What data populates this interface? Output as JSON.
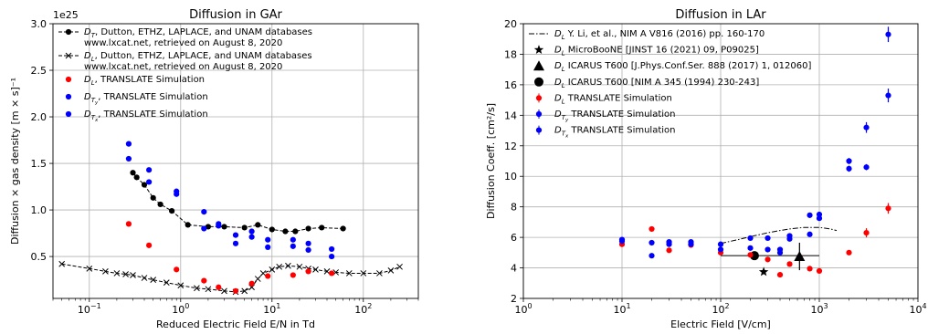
{
  "chart_data": [
    {
      "type": "scatter",
      "title": "Diffusion in GAr",
      "xlabel": "Reduced Electric Field E/N in Td",
      "ylabel": "Diffusion × gas density [m × s]⁻¹",
      "offset_text": "1e25",
      "xscale": "log",
      "xlim": [
        0.04,
        400
      ],
      "ylim": [
        0.05,
        3.0
      ],
      "xticks": [
        {
          "value": 0.1,
          "base": "10",
          "exp": "−1"
        },
        {
          "value": 1,
          "base": "10",
          "exp": "0"
        },
        {
          "value": 10,
          "base": "10",
          "exp": "1"
        },
        {
          "value": 100,
          "base": "10",
          "exp": "2"
        }
      ],
      "yticks": [
        {
          "value": 0.5,
          "label": "0.5"
        },
        {
          "value": 1.0,
          "label": "1.0"
        },
        {
          "value": 1.5,
          "label": "1.5"
        },
        {
          "value": 2.0,
          "label": "2.0"
        },
        {
          "value": 2.5,
          "label": "2.5"
        },
        {
          "value": 3.0,
          "label": "3.0"
        }
      ],
      "grid": true,
      "legend_position": "upper left",
      "series": [
        {
          "name": "D_T, Dutton, ETHZ, LAPLACE, and UNAM databases www.lxcat.net, retrieved on August 8, 2020",
          "legend_lines": [
            "Dutton, ETHZ, LAPLACE, and UNAM databases",
            "www.lxcat.net, retrieved on August 8, 2020"
          ],
          "symbol": "D",
          "sub": "T",
          "kind": "line_dot",
          "color": "#000000",
          "x": [
            0.3,
            0.33,
            0.4,
            0.5,
            0.6,
            0.8,
            1.2,
            2,
            3,
            5,
            7,
            10,
            14,
            18,
            25,
            35,
            60
          ],
          "y": [
            1.4,
            1.35,
            1.27,
            1.13,
            1.06,
            0.99,
            0.84,
            0.82,
            0.82,
            0.81,
            0.84,
            0.79,
            0.77,
            0.77,
            0.8,
            0.81,
            0.8
          ]
        },
        {
          "name": "D_L, Dutton, ETHZ, LAPLACE, and UNAM databases www.lxcat.net, retrieved on August 8, 2020",
          "legend_lines": [
            "Dutton, ETHZ, LAPLACE, and UNAM databases",
            "www.lxcat.net, retrieved on August 8, 2020"
          ],
          "symbol": "D",
          "sub": "L",
          "kind": "line_x",
          "color": "#000000",
          "x": [
            0.05,
            0.1,
            0.15,
            0.2,
            0.25,
            0.3,
            0.4,
            0.5,
            0.7,
            1.0,
            1.5,
            2,
            3,
            4,
            5,
            6,
            7,
            8,
            10,
            12,
            15,
            20,
            25,
            30,
            40,
            50,
            70,
            100,
            150,
            200,
            250
          ],
          "y": [
            0.42,
            0.37,
            0.34,
            0.32,
            0.31,
            0.3,
            0.27,
            0.25,
            0.22,
            0.19,
            0.16,
            0.15,
            0.13,
            0.12,
            0.13,
            0.17,
            0.26,
            0.32,
            0.36,
            0.39,
            0.4,
            0.39,
            0.37,
            0.36,
            0.34,
            0.33,
            0.32,
            0.32,
            0.32,
            0.35,
            0.39
          ]
        },
        {
          "name": "D_L, TRANSLATE Simulation",
          "legend_suffix": ", TRANSLATE Simulation",
          "symbol": "D",
          "sub": "L",
          "kind": "dot",
          "color": "#ff0000",
          "x": [
            0.27,
            0.45,
            0.9,
            1.8,
            2.6,
            4.0,
            6.0,
            9.0,
            17,
            25,
            45
          ],
          "y": [
            0.85,
            0.62,
            0.36,
            0.24,
            0.17,
            0.13,
            0.21,
            0.29,
            0.3,
            0.34,
            0.32
          ]
        },
        {
          "name": "D_Ty, TRANSLATE Simulation",
          "legend_suffix": ", TRANSLATE Simulation",
          "symbol": "D",
          "sub": "T",
          "subsub": "y",
          "kind": "dot",
          "color": "#0000ff",
          "x": [
            0.27,
            0.45,
            0.9,
            1.8,
            2.6,
            4.0,
            6.0,
            9.0,
            17,
            25,
            45
          ],
          "y": [
            1.71,
            1.43,
            1.2,
            0.98,
            0.85,
            0.73,
            0.71,
            0.68,
            0.68,
            0.64,
            0.58
          ]
        },
        {
          "name": "D_Tx, TRANSLATE Simulation",
          "legend_suffix": ", TRANSLATE Simulation",
          "symbol": "D",
          "sub": "T",
          "subsub": "x",
          "kind": "dot",
          "color": "#0000ff",
          "x": [
            0.27,
            0.45,
            0.9,
            1.8,
            2.6,
            4.0,
            6.0,
            9.0,
            17,
            25,
            45
          ],
          "y": [
            1.55,
            1.3,
            1.17,
            0.8,
            0.83,
            0.64,
            0.77,
            0.6,
            0.61,
            0.57,
            0.5
          ]
        }
      ]
    },
    {
      "type": "scatter",
      "title": "Diffusion in LAr",
      "xlabel": "Electric Field [V/cm]",
      "ylabel": "Diffusion Coeff. [cm²/s]",
      "xscale": "log",
      "xlim": [
        1,
        10000
      ],
      "ylim": [
        2,
        20
      ],
      "xticks": [
        {
          "value": 1,
          "base": "10",
          "exp": "0"
        },
        {
          "value": 10,
          "base": "10",
          "exp": "1"
        },
        {
          "value": 100,
          "base": "10",
          "exp": "2"
        },
        {
          "value": 1000,
          "base": "10",
          "exp": "3"
        },
        {
          "value": 10000,
          "base": "10",
          "exp": "4"
        }
      ],
      "yticks": [
        {
          "value": 2,
          "label": "2"
        },
        {
          "value": 4,
          "label": "4"
        },
        {
          "value": 6,
          "label": "6"
        },
        {
          "value": 8,
          "label": "8"
        },
        {
          "value": 10,
          "label": "10"
        },
        {
          "value": 12,
          "label": "12"
        },
        {
          "value": 14,
          "label": "14"
        },
        {
          "value": 16,
          "label": "16"
        },
        {
          "value": 18,
          "label": "18"
        },
        {
          "value": 20,
          "label": "20"
        }
      ],
      "grid": true,
      "legend_position": "upper left",
      "series": [
        {
          "name": "D_L Y. Li, et al., NIM A V816 (2016) pp. 160-170",
          "legend_suffix": " Y. Li, et al., NIM A V816 (2016) pp. 160-170",
          "symbol": "D",
          "sub": "L",
          "kind": "dashdot",
          "color": "#000000",
          "x": [
            100,
            150,
            200,
            300,
            400,
            500,
            700,
            1000,
            1300,
            1500
          ],
          "y": [
            5.6,
            5.85,
            6.05,
            6.3,
            6.45,
            6.55,
            6.65,
            6.65,
            6.55,
            6.45
          ]
        },
        {
          "name": "D_L MicroBooNE [JINST 16 (2021) 09, P09025]",
          "legend_suffix": " MicroBooNE [JINST 16 (2021) 09, P09025]",
          "symbol": "D",
          "sub": "L",
          "kind": "star",
          "color": "#000000",
          "x": [
            273
          ],
          "y": [
            3.74
          ]
        },
        {
          "name": "D_L ICARUS T600 [J.Phys.Conf.Ser. 888 (2017) 1, 012060]",
          "legend_suffix": " ICARUS T600 [J.Phys.Conf.Ser. 888 (2017) 1, 012060]",
          "symbol": "D",
          "sub": "L",
          "kind": "triangle",
          "color": "#000000",
          "x": [
            630
          ],
          "y": [
            4.75
          ],
          "yerr": [
            0.9
          ]
        },
        {
          "name": "D_L ICARUS T600 [NIM A 345 (1994) 230-243]",
          "legend_suffix": " ICARUS T600 [NIM A 345 (1994) 230-243]",
          "symbol": "D",
          "sub": "L",
          "kind": "bigdot",
          "color": "#000000",
          "x": [
            220
          ],
          "y": [
            4.8
          ],
          "xerr_range": [
            100,
            1000
          ]
        },
        {
          "name": "D_L TRANSLATE Simulation",
          "legend_suffix": " TRANSLATE Simulation",
          "symbol": "D",
          "sub": "L",
          "kind": "dot_err",
          "color": "#ff0000",
          "x": [
            10,
            20,
            30,
            50,
            100,
            200,
            300,
            400,
            500,
            800,
            1000,
            2000,
            3000,
            5000
          ],
          "y": [
            5.55,
            6.55,
            5.15,
            5.5,
            5.0,
            4.85,
            4.55,
            3.55,
            4.25,
            3.95,
            3.8,
            5.0,
            6.3,
            7.9
          ],
          "yerr": [
            0.1,
            0.1,
            0.1,
            0.1,
            0.1,
            0.1,
            0.1,
            0.1,
            0.1,
            0.1,
            0.1,
            0.15,
            0.3,
            0.35
          ]
        },
        {
          "name": "D_Ty TRANSLATE Simulation",
          "legend_suffix": " TRANSLATE Simulation",
          "symbol": "D",
          "sub": "T",
          "subsub": "y",
          "kind": "dot_err",
          "color": "#0000ff",
          "x": [
            10,
            20,
            30,
            50,
            100,
            200,
            300,
            400,
            500,
            800,
            1000,
            2000,
            3000,
            5000
          ],
          "y": [
            5.75,
            4.8,
            5.7,
            5.7,
            5.55,
            5.95,
            5.2,
            5.0,
            6.1,
            6.2,
            7.5,
            11.0,
            13.2,
            15.3
          ],
          "yerr": [
            0.1,
            0.1,
            0.1,
            0.1,
            0.1,
            0.1,
            0.1,
            0.1,
            0.1,
            0.1,
            0.1,
            0.2,
            0.35,
            0.45
          ]
        },
        {
          "name": "D_Tx TRANSLATE Simulation",
          "legend_suffix": " TRANSLATE Simulation",
          "symbol": "D",
          "sub": "T",
          "subsub": "x",
          "kind": "dot_err",
          "color": "#0000ff",
          "x": [
            10,
            20,
            30,
            50,
            100,
            200,
            300,
            400,
            500,
            800,
            1000,
            2000,
            3000,
            5000
          ],
          "y": [
            5.85,
            5.65,
            5.55,
            5.55,
            5.2,
            5.3,
            5.95,
            5.2,
            5.9,
            7.45,
            7.25,
            10.5,
            10.6,
            19.3
          ],
          "yerr": [
            0.1,
            0.1,
            0.1,
            0.1,
            0.1,
            0.1,
            0.1,
            0.1,
            0.1,
            0.1,
            0.1,
            0.2,
            0.2,
            0.5
          ]
        }
      ]
    }
  ]
}
